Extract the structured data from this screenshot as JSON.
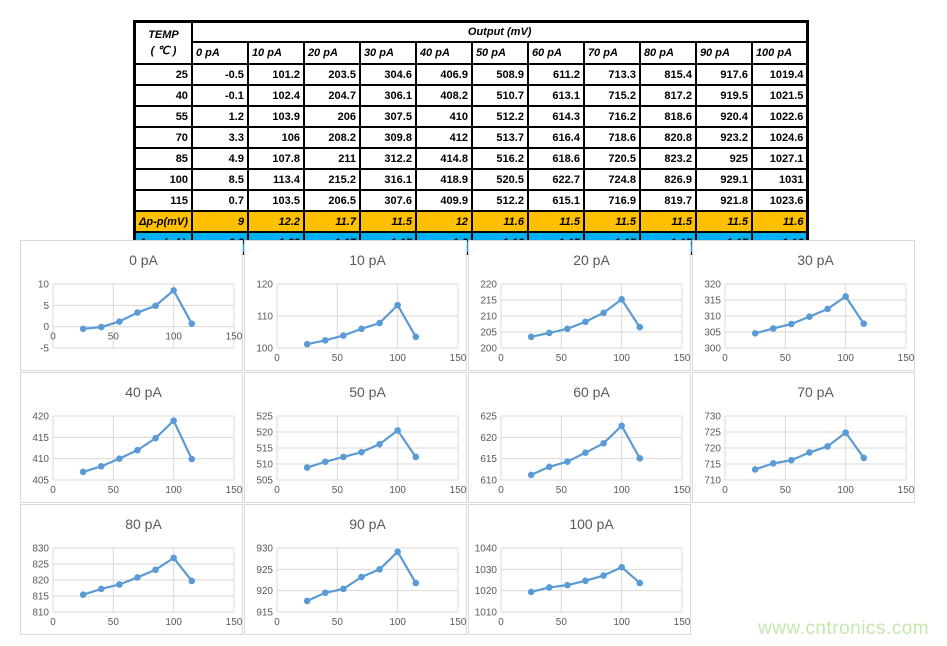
{
  "watermark": "www.cntronics.com",
  "colors": {
    "line": "#5B9BD5",
    "marker": "#5B9BD5",
    "grid": "#d9d9d9",
    "axis_text": "#595959",
    "title_text": "#595959",
    "delta_mv_bg": "#FFC000",
    "delta_pa_bg": "#00B0F0",
    "border": "#000000"
  },
  "table": {
    "temp_label_1": "TEMP",
    "temp_label_2": "( ℃ )",
    "output_label": "Output (mV)",
    "columns": [
      "0 pA",
      "10 pA",
      "20 pA",
      "30 pA",
      "40 pA",
      "50 pA",
      "60 pA",
      "70 pA",
      "80 pA",
      "90 pA",
      "100 pA"
    ],
    "rows": [
      {
        "temp": "25",
        "values": [
          "-0.5",
          "101.2",
          "203.5",
          "304.6",
          "406.9",
          "508.9",
          "611.2",
          "713.3",
          "815.4",
          "917.6",
          "1019.4"
        ]
      },
      {
        "temp": "40",
        "values": [
          "-0.1",
          "102.4",
          "204.7",
          "306.1",
          "408.2",
          "510.7",
          "613.1",
          "715.2",
          "817.2",
          "919.5",
          "1021.5"
        ]
      },
      {
        "temp": "55",
        "values": [
          "1.2",
          "103.9",
          "206",
          "307.5",
          "410",
          "512.2",
          "614.3",
          "716.2",
          "818.6",
          "920.4",
          "1022.6"
        ]
      },
      {
        "temp": "70",
        "values": [
          "3.3",
          "106",
          "208.2",
          "309.8",
          "412",
          "513.7",
          "616.4",
          "718.6",
          "820.8",
          "923.2",
          "1024.6"
        ]
      },
      {
        "temp": "85",
        "values": [
          "4.9",
          "107.8",
          "211",
          "312.2",
          "414.8",
          "516.2",
          "618.6",
          "720.5",
          "823.2",
          "925",
          "1027.1"
        ]
      },
      {
        "temp": "100",
        "values": [
          "8.5",
          "113.4",
          "215.2",
          "316.1",
          "418.9",
          "520.5",
          "622.7",
          "724.8",
          "826.9",
          "929.1",
          "1031"
        ]
      },
      {
        "temp": "115",
        "values": [
          "0.7",
          "103.5",
          "206.5",
          "307.6",
          "409.9",
          "512.2",
          "615.1",
          "716.9",
          "819.7",
          "921.8",
          "1023.6"
        ]
      }
    ],
    "delta_mv": {
      "label": "Δp-p(mV)",
      "values": [
        "9",
        "12.2",
        "11.7",
        "11.5",
        "12",
        "11.6",
        "11.5",
        "11.5",
        "11.5",
        "11.5",
        "11.6"
      ]
    },
    "delta_pa": {
      "label": "Δp-p(pA)",
      "values": [
        "0.9",
        "1.22",
        "1.17",
        "1.15",
        "1.2",
        "1.16",
        "1.15",
        "1.15",
        "1.15",
        "1.15",
        "1.16"
      ]
    }
  },
  "chart_data": [
    {
      "type": "line",
      "title": "0 pA",
      "x": [
        25,
        40,
        55,
        70,
        85,
        100,
        115
      ],
      "values": [
        -0.5,
        -0.1,
        1.2,
        3.3,
        4.9,
        8.5,
        0.7
      ],
      "ylim": [
        -5,
        10
      ],
      "yticks": [
        -5,
        0,
        5,
        10
      ],
      "xlim": [
        0,
        150
      ],
      "xticks": [
        0,
        50,
        100,
        150
      ]
    },
    {
      "type": "line",
      "title": "10 pA",
      "x": [
        25,
        40,
        55,
        70,
        85,
        100,
        115
      ],
      "values": [
        101.2,
        102.4,
        103.9,
        106,
        107.8,
        113.4,
        103.5
      ],
      "ylim": [
        100,
        120
      ],
      "yticks": [
        100,
        110,
        120
      ],
      "xlim": [
        0,
        150
      ],
      "xticks": [
        0,
        50,
        100,
        150
      ]
    },
    {
      "type": "line",
      "title": "20 pA",
      "x": [
        25,
        40,
        55,
        70,
        85,
        100,
        115
      ],
      "values": [
        203.5,
        204.7,
        206,
        208.2,
        211,
        215.2,
        206.5
      ],
      "ylim": [
        200,
        220
      ],
      "yticks": [
        200,
        205,
        210,
        215,
        220
      ],
      "xlim": [
        0,
        150
      ],
      "xticks": [
        0,
        50,
        100,
        150
      ]
    },
    {
      "type": "line",
      "title": "30 pA",
      "x": [
        25,
        40,
        55,
        70,
        85,
        100,
        115
      ],
      "values": [
        304.6,
        306.1,
        307.5,
        309.8,
        312.2,
        316.1,
        307.6
      ],
      "ylim": [
        300,
        320
      ],
      "yticks": [
        300,
        305,
        310,
        315,
        320
      ],
      "xlim": [
        0,
        150
      ],
      "xticks": [
        0,
        50,
        100,
        150
      ]
    },
    {
      "type": "line",
      "title": "40 pA",
      "x": [
        25,
        40,
        55,
        70,
        85,
        100,
        115
      ],
      "values": [
        406.9,
        408.2,
        410,
        412,
        414.8,
        418.9,
        409.9
      ],
      "ylim": [
        405,
        420
      ],
      "yticks": [
        405,
        410,
        415,
        420
      ],
      "xlim": [
        0,
        150
      ],
      "xticks": [
        0,
        50,
        100,
        150
      ]
    },
    {
      "type": "line",
      "title": "50 pA",
      "x": [
        25,
        40,
        55,
        70,
        85,
        100,
        115
      ],
      "values": [
        508.9,
        510.7,
        512.2,
        513.7,
        516.2,
        520.5,
        512.2
      ],
      "ylim": [
        505,
        525
      ],
      "yticks": [
        505,
        510,
        515,
        520,
        525
      ],
      "xlim": [
        0,
        150
      ],
      "xticks": [
        0,
        50,
        100,
        150
      ]
    },
    {
      "type": "line",
      "title": "60 pA",
      "x": [
        25,
        40,
        55,
        70,
        85,
        100,
        115
      ],
      "values": [
        611.2,
        613.1,
        614.3,
        616.4,
        618.6,
        622.7,
        615.1
      ],
      "ylim": [
        610,
        625
      ],
      "yticks": [
        610,
        615,
        620,
        625
      ],
      "xlim": [
        0,
        150
      ],
      "xticks": [
        0,
        50,
        100,
        150
      ]
    },
    {
      "type": "line",
      "title": "70 pA",
      "x": [
        25,
        40,
        55,
        70,
        85,
        100,
        115
      ],
      "values": [
        713.3,
        715.2,
        716.2,
        718.6,
        720.5,
        724.8,
        716.9
      ],
      "ylim": [
        710,
        730
      ],
      "yticks": [
        710,
        715,
        720,
        725,
        730
      ],
      "xlim": [
        0,
        150
      ],
      "xticks": [
        0,
        50,
        100,
        150
      ]
    },
    {
      "type": "line",
      "title": "80 pA",
      "x": [
        25,
        40,
        55,
        70,
        85,
        100,
        115
      ],
      "values": [
        815.4,
        817.2,
        818.6,
        820.8,
        823.2,
        826.9,
        819.7
      ],
      "ylim": [
        810,
        830
      ],
      "yticks": [
        810,
        815,
        820,
        825,
        830
      ],
      "xlim": [
        0,
        150
      ],
      "xticks": [
        0,
        50,
        100,
        150
      ]
    },
    {
      "type": "line",
      "title": "90 pA",
      "x": [
        25,
        40,
        55,
        70,
        85,
        100,
        115
      ],
      "values": [
        917.6,
        919.5,
        920.4,
        923.2,
        925,
        929.1,
        921.8
      ],
      "ylim": [
        915,
        930
      ],
      "yticks": [
        915,
        920,
        925,
        930
      ],
      "xlim": [
        0,
        150
      ],
      "xticks": [
        0,
        50,
        100,
        150
      ]
    },
    {
      "type": "line",
      "title": "100 pA",
      "x": [
        25,
        40,
        55,
        70,
        85,
        100,
        115
      ],
      "values": [
        1019.4,
        1021.5,
        1022.6,
        1024.6,
        1027.1,
        1031,
        1023.6
      ],
      "ylim": [
        1010,
        1040
      ],
      "yticks": [
        1010,
        1020,
        1030,
        1040
      ],
      "xlim": [
        0,
        150
      ],
      "xticks": [
        0,
        50,
        100,
        150
      ]
    }
  ]
}
